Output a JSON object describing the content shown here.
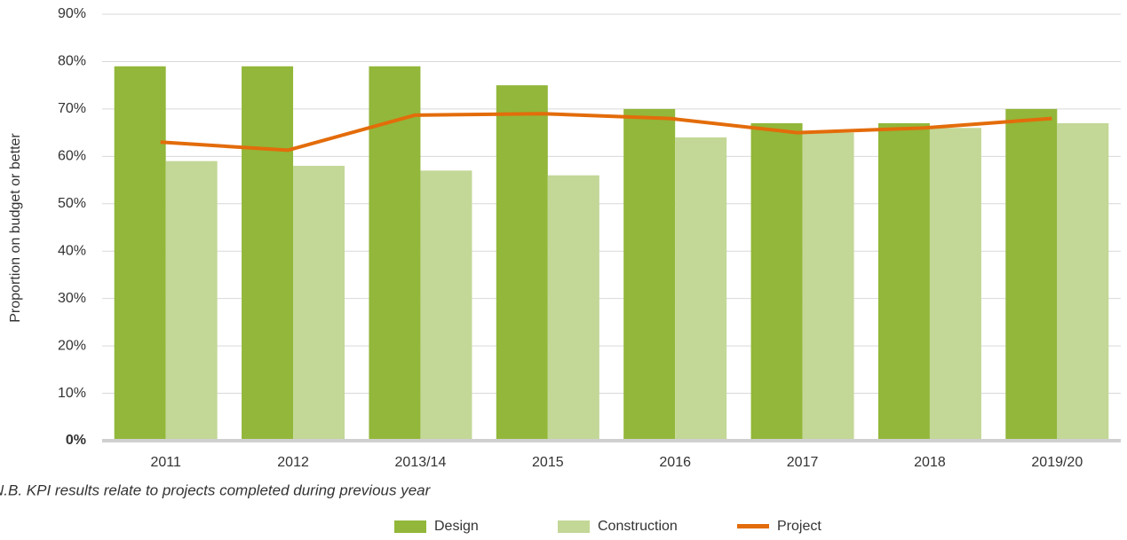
{
  "chart_data": {
    "type": "bar",
    "y_label": "Proportion on budget or better",
    "note": "N.B. KPI results relate to projects completed during previous year",
    "categories": [
      "2011",
      "2012",
      "2013/14",
      "2015",
      "2016",
      "2017",
      "2018",
      "2019/20"
    ],
    "series": [
      {
        "name": "Design",
        "type": "bar",
        "color": "#92b73a",
        "values": [
          79,
          79,
          79,
          75,
          70,
          67,
          67,
          70
        ]
      },
      {
        "name": "Construction",
        "type": "bar",
        "color": "#c3d797",
        "values": [
          59,
          58,
          57,
          56,
          64,
          65,
          66,
          67
        ]
      },
      {
        "name": "Project",
        "type": "line",
        "color": "#e36c0a",
        "values": [
          63,
          61.3,
          68.7,
          69,
          68,
          65,
          66,
          68
        ]
      }
    ],
    "ylim": [
      0,
      90
    ],
    "yticks": [
      {
        "value": 0,
        "label": "0%"
      },
      {
        "value": 10,
        "label": "10%"
      },
      {
        "value": 20,
        "label": "20%"
      },
      {
        "value": 30,
        "label": "30%"
      },
      {
        "value": 40,
        "label": "40%"
      },
      {
        "value": 50,
        "label": "50%"
      },
      {
        "value": 60,
        "label": "60%"
      },
      {
        "value": 70,
        "label": "70%"
      },
      {
        "value": 80,
        "label": "80%"
      },
      {
        "value": 90,
        "label": "90%"
      }
    ],
    "grid": true,
    "legend": "bottom"
  }
}
